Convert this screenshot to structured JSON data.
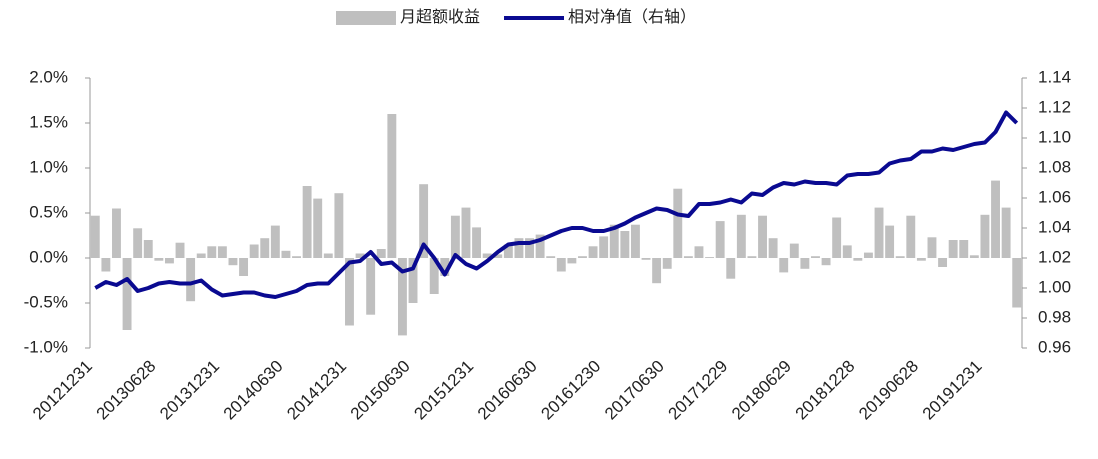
{
  "chart_data": {
    "type": "bar-line",
    "categories": [
      "20121231",
      null,
      null,
      null,
      null,
      null,
      "20130628",
      null,
      null,
      null,
      null,
      null,
      "20131231",
      null,
      null,
      null,
      null,
      null,
      "20140630",
      null,
      null,
      null,
      null,
      null,
      "20141231",
      null,
      null,
      null,
      null,
      null,
      "20150630",
      null,
      null,
      null,
      null,
      null,
      "20151231",
      null,
      null,
      null,
      null,
      null,
      "20160630",
      null,
      null,
      null,
      null,
      null,
      "20161230",
      null,
      null,
      null,
      null,
      null,
      "20170630",
      null,
      null,
      null,
      null,
      null,
      "20171229",
      null,
      null,
      null,
      null,
      null,
      "20180629",
      null,
      null,
      null,
      null,
      null,
      "20181228",
      null,
      null,
      null,
      null,
      null,
      "20190628",
      null,
      null,
      null,
      null,
      null,
      "20191231",
      null,
      null,
      null
    ],
    "series": [
      {
        "name": "月超额收益",
        "color": "#bfbfbf",
        "axis": "y",
        "values": [
          0.47,
          -0.15,
          0.55,
          -0.8,
          0.33,
          0.2,
          -0.03,
          -0.06,
          0.17,
          -0.48,
          0.05,
          0.13,
          0.13,
          -0.08,
          -0.2,
          0.15,
          0.22,
          0.36,
          0.08,
          0.02,
          0.8,
          0.66,
          0.05,
          0.72,
          -0.75,
          0.05,
          -0.63,
          0.1,
          1.6,
          -0.86,
          -0.5,
          0.82,
          -0.4,
          -0.2,
          0.47,
          0.56,
          0.34,
          0.05,
          0.04,
          0.15,
          0.22,
          0.22,
          0.26,
          0.02,
          -0.15,
          -0.06,
          0.02,
          0.13,
          0.24,
          0.37,
          0.3,
          0.37,
          -0.02,
          -0.28,
          -0.12,
          0.77,
          0.02,
          0.13,
          0.01,
          0.41,
          -0.23,
          0.48,
          0.02,
          0.47,
          0.22,
          -0.16,
          0.16,
          -0.12,
          0.02,
          -0.08,
          0.45,
          0.14,
          -0.03,
          0.06,
          0.56,
          0.36,
          0.02,
          0.47,
          -0.03,
          0.23,
          -0.1,
          0.2,
          0.2,
          0.03,
          0.48,
          0.86,
          0.56,
          -0.55
        ]
      },
      {
        "name": "相对净值（右轴）",
        "color": "#0a0a91",
        "axis": "y2",
        "values": [
          1.0,
          1.004,
          1.002,
          1.006,
          0.998,
          1.0,
          1.003,
          1.004,
          1.003,
          1.003,
          1.005,
          0.999,
          0.995,
          0.996,
          0.997,
          0.997,
          0.995,
          0.994,
          0.996,
          0.998,
          1.002,
          1.003,
          1.003,
          1.01,
          1.017,
          1.018,
          1.024,
          1.016,
          1.017,
          1.011,
          1.013,
          1.029,
          1.02,
          1.009,
          1.022,
          1.016,
          1.013,
          1.018,
          1.024,
          1.029,
          1.03,
          1.03,
          1.032,
          1.035,
          1.038,
          1.04,
          1.04,
          1.038,
          1.038,
          1.04,
          1.043,
          1.047,
          1.05,
          1.053,
          1.052,
          1.049,
          1.048,
          1.056,
          1.056,
          1.057,
          1.059,
          1.057,
          1.063,
          1.062,
          1.067,
          1.07,
          1.069,
          1.071,
          1.07,
          1.07,
          1.069,
          1.075,
          1.076,
          1.076,
          1.077,
          1.083,
          1.085,
          1.086,
          1.091,
          1.091,
          1.093,
          1.092,
          1.094,
          1.096,
          1.097,
          1.104,
          1.117,
          1.11
        ]
      }
    ],
    "ylim": [
      -1.0,
      2.0
    ],
    "yticks": [
      {
        "value": -1.0,
        "label": "-1.0%"
      },
      {
        "value": -0.5,
        "label": "-0.5%"
      },
      {
        "value": 0.0,
        "label": "0.0%"
      },
      {
        "value": 0.5,
        "label": "0.5%"
      },
      {
        "value": 1.0,
        "label": "1.0%"
      },
      {
        "value": 1.5,
        "label": "1.5%"
      },
      {
        "value": 2.0,
        "label": "2.0%"
      }
    ],
    "y2lim": [
      0.96,
      1.14
    ],
    "y2ticks": [
      0.96,
      0.98,
      {
        "value": 1.0,
        "label": "1.00"
      },
      1.02,
      1.04,
      1.06,
      1.08,
      {
        "value": 1.1,
        "label": "1.10"
      },
      1.12,
      1.14
    ],
    "legend": "top",
    "grid": false
  }
}
